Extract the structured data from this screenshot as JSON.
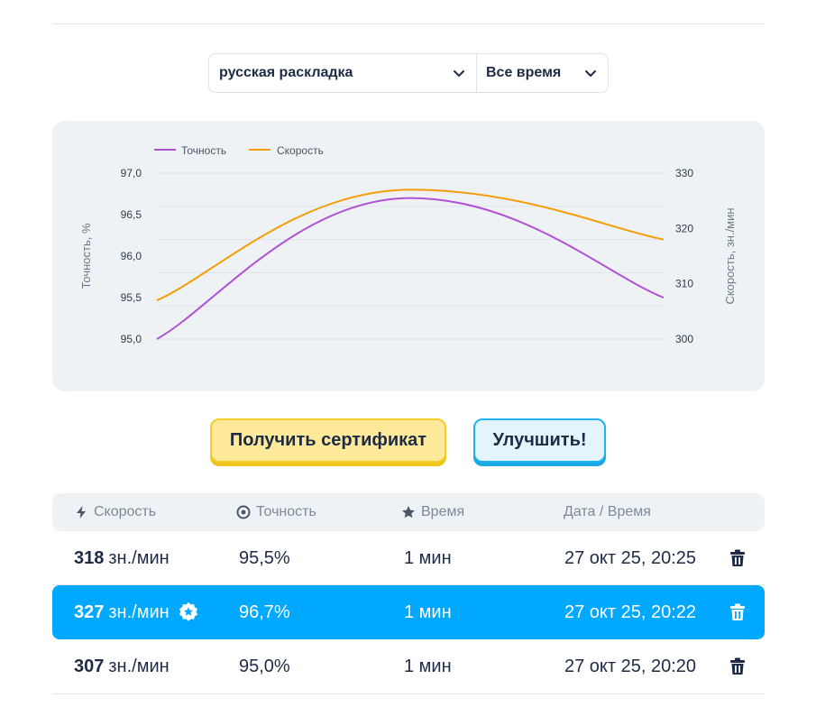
{
  "selectors": {
    "layout": "русская раскладка",
    "period": "Все время"
  },
  "chart_data": {
    "type": "line",
    "x": [
      1,
      2,
      3
    ],
    "series": [
      {
        "name": "Точность",
        "axis": "left",
        "color": "#b052d6",
        "values": [
          95.0,
          96.7,
          95.5
        ]
      },
      {
        "name": "Скорость",
        "axis": "right",
        "color": "#f59e0b",
        "values": [
          307,
          327,
          318
        ]
      }
    ],
    "ylabel_left": "Точность, %",
    "ylabel_right": "Скорость, зн./мин",
    "yticks_left": [
      "95,0",
      "95,5",
      "96,0",
      "96,5",
      "97,0"
    ],
    "yticks_right": [
      "300",
      "310",
      "320",
      "330"
    ],
    "ylim_left": [
      95.0,
      97.0
    ],
    "ylim_right": [
      300,
      330
    ],
    "legend_position": "top-left",
    "grid": true
  },
  "buttons": {
    "certificate": "Получить сертификат",
    "improve": "Улучшить!"
  },
  "table": {
    "headers": {
      "speed": "Скорость",
      "accuracy": "Точность",
      "time": "Время",
      "datetime": "Дата / Время"
    },
    "rows": [
      {
        "speed": "318",
        "unit": "зн./мин",
        "accuracy": "95,5%",
        "time": "1 мин",
        "datetime": "27 окт 25, 20:25",
        "best": false
      },
      {
        "speed": "327",
        "unit": "зн./мин",
        "accuracy": "96,7%",
        "time": "1 мин",
        "datetime": "27 окт 25, 20:22",
        "best": true
      },
      {
        "speed": "307",
        "unit": "зн./мин",
        "accuracy": "95,0%",
        "time": "1 мин",
        "datetime": "27 окт 25, 20:20",
        "best": false
      }
    ]
  },
  "colors": {
    "accent": "#00a8ff",
    "accuracy_line": "#b052d6",
    "speed_line": "#f59e0b",
    "cert_button": "#ffe99a",
    "improve_button": "#e3f4fd"
  }
}
